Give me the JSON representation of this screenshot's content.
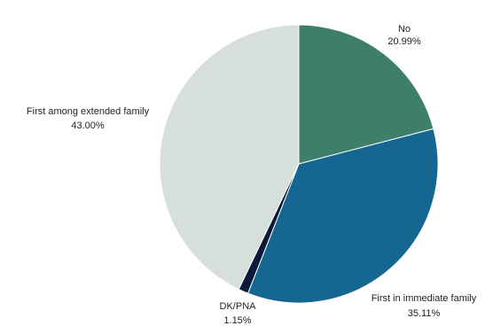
{
  "chart_data": {
    "type": "pie",
    "title": "",
    "start_angle_deg": 0,
    "direction": "clockwise",
    "slices": [
      {
        "label": "No",
        "value": 20.99,
        "display": "20.99%",
        "color": "#3e7f6b"
      },
      {
        "label": "First in immediate family",
        "value": 35.11,
        "display": "35.11%",
        "color": "#156791"
      },
      {
        "label": "DK/PNA",
        "value": 1.15,
        "display": "1.15%",
        "color": "#0a1a3a"
      },
      {
        "label": "First among extended family",
        "value": 43.0,
        "display": "43.00%",
        "color": "#d6dfd9"
      }
    ],
    "legend": "none"
  }
}
